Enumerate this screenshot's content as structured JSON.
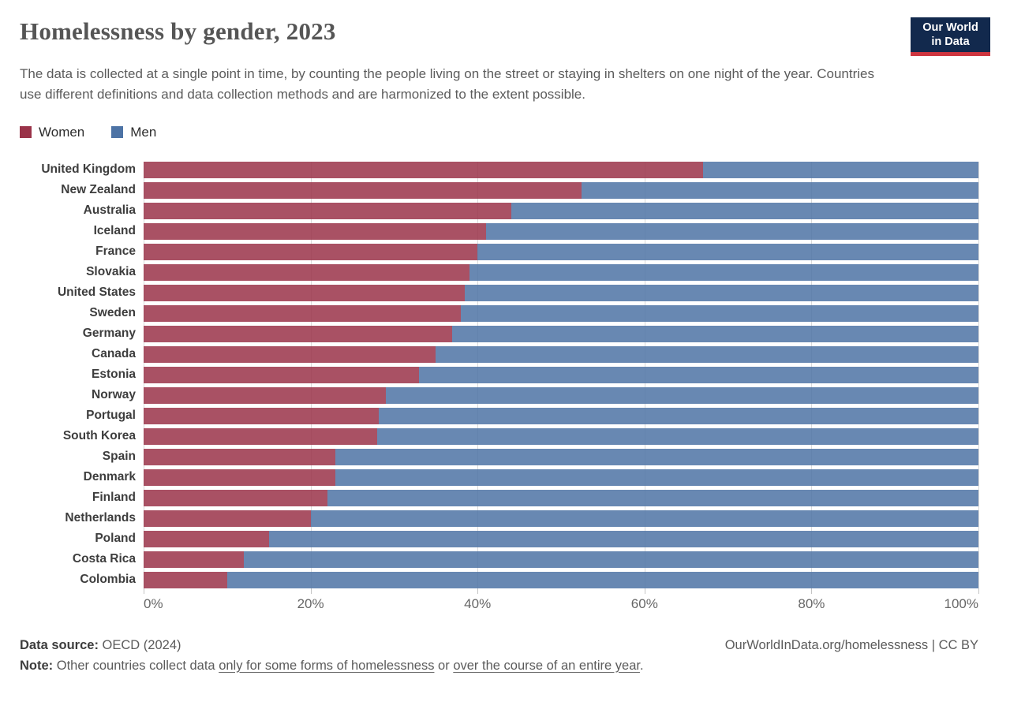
{
  "header": {
    "title": "Homelessness by gender, 2023",
    "subtitle": "The data is collected at a single point in time, by counting the people living on the street or staying in shelters on one night of the year. Countries use different definitions and data collection methods and are harmonized to the extent possible.",
    "logo_line1": "Our World",
    "logo_line2": "in Data",
    "logo_colors": {
      "background": "#12294d",
      "underline": "#ce353f"
    }
  },
  "legend": {
    "items": [
      {
        "label": "Women",
        "color": "#9a3349"
      },
      {
        "label": "Men",
        "color": "#4d73a5"
      }
    ]
  },
  "chart_data": {
    "type": "bar",
    "orientation": "horizontal",
    "stacked": true,
    "unit": "%",
    "xlim": [
      0,
      100
    ],
    "grid": true,
    "legend_position": "top",
    "categories": [
      "United Kingdom",
      "New Zealand",
      "Australia",
      "Iceland",
      "France",
      "Slovakia",
      "United States",
      "Sweden",
      "Germany",
      "Canada",
      "Estonia",
      "Norway",
      "Portugal",
      "South Korea",
      "Spain",
      "Denmark",
      "Finland",
      "Netherlands",
      "Poland",
      "Costa Rica",
      "Colombia"
    ],
    "series": [
      {
        "name": "Women",
        "color": "#9a3349",
        "values": [
          67,
          52.5,
          44,
          41,
          40,
          39,
          38.5,
          38,
          37,
          35,
          33,
          29,
          28.2,
          28,
          23,
          23,
          22,
          20,
          15,
          12,
          10
        ]
      },
      {
        "name": "Men",
        "color": "#4d73a5",
        "values": [
          33,
          47.5,
          56,
          59,
          60,
          61,
          61.5,
          62,
          63,
          65,
          67,
          71,
          71.8,
          72,
          77,
          77,
          78,
          80,
          85,
          88,
          90
        ]
      }
    ],
    "x_ticks": [
      {
        "label": "0%",
        "value": 0
      },
      {
        "label": "20%",
        "value": 20
      },
      {
        "label": "40%",
        "value": 40
      },
      {
        "label": "60%",
        "value": 60
      },
      {
        "label": "80%",
        "value": 80
      },
      {
        "label": "100%",
        "value": 100
      }
    ]
  },
  "footer": {
    "source_label": "Data source:",
    "source_value": "OECD (2024)",
    "attribution": "OurWorldInData.org/homelessness | CC BY",
    "note_label": "Note:",
    "note_parts": [
      {
        "text": "Other countries collect data ",
        "underline": false
      },
      {
        "text": "only for some forms of homelessness",
        "underline": true
      },
      {
        "text": " or ",
        "underline": false
      },
      {
        "text": "over the course of an entire year",
        "underline": true
      },
      {
        "text": ".",
        "underline": false
      }
    ]
  }
}
